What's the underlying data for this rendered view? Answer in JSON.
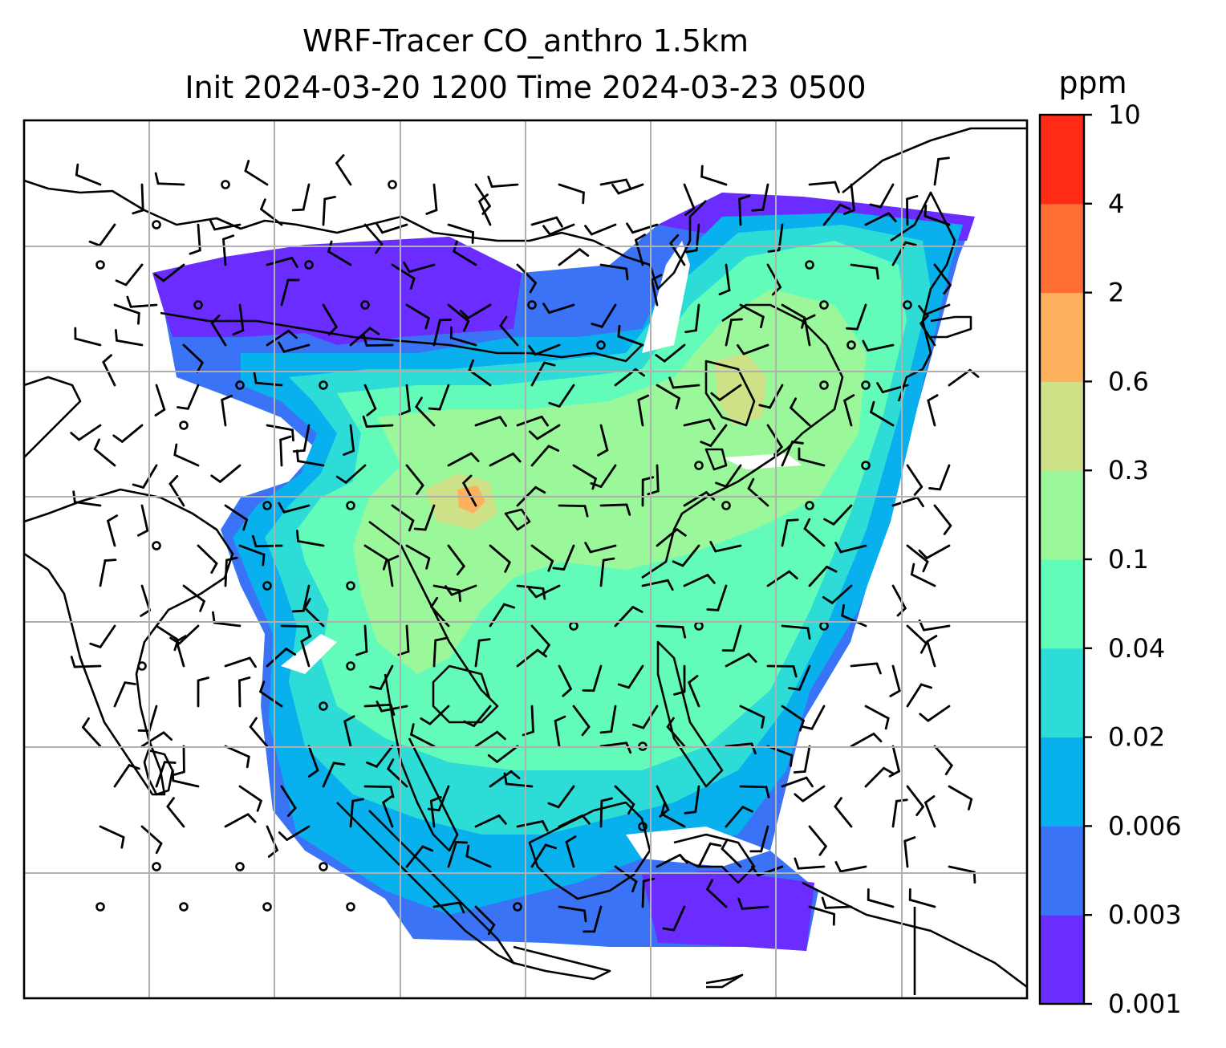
{
  "chart_data": {
    "type": "heatmap",
    "title_line1": "WRF-Tracer CO_anthro 1.5km",
    "title_line2": "Init 2024-03-20 1200 Time 2024-03-23 0500",
    "colorbar": {
      "unit": "ppm",
      "levels": [
        "0.001",
        "0.003",
        "0.006",
        "0.02",
        "0.04",
        "0.1",
        "0.3",
        "0.6",
        "2",
        "4",
        "10"
      ],
      "colors": [
        "#6a2cff",
        "#3a73f5",
        "#08b0ee",
        "#2ddcd6",
        "#63fbb9",
        "#9af89b",
        "#cfe187",
        "#ffb05c",
        "#ff6f35",
        "#ff2b15"
      ]
    },
    "gridlines": true
  }
}
